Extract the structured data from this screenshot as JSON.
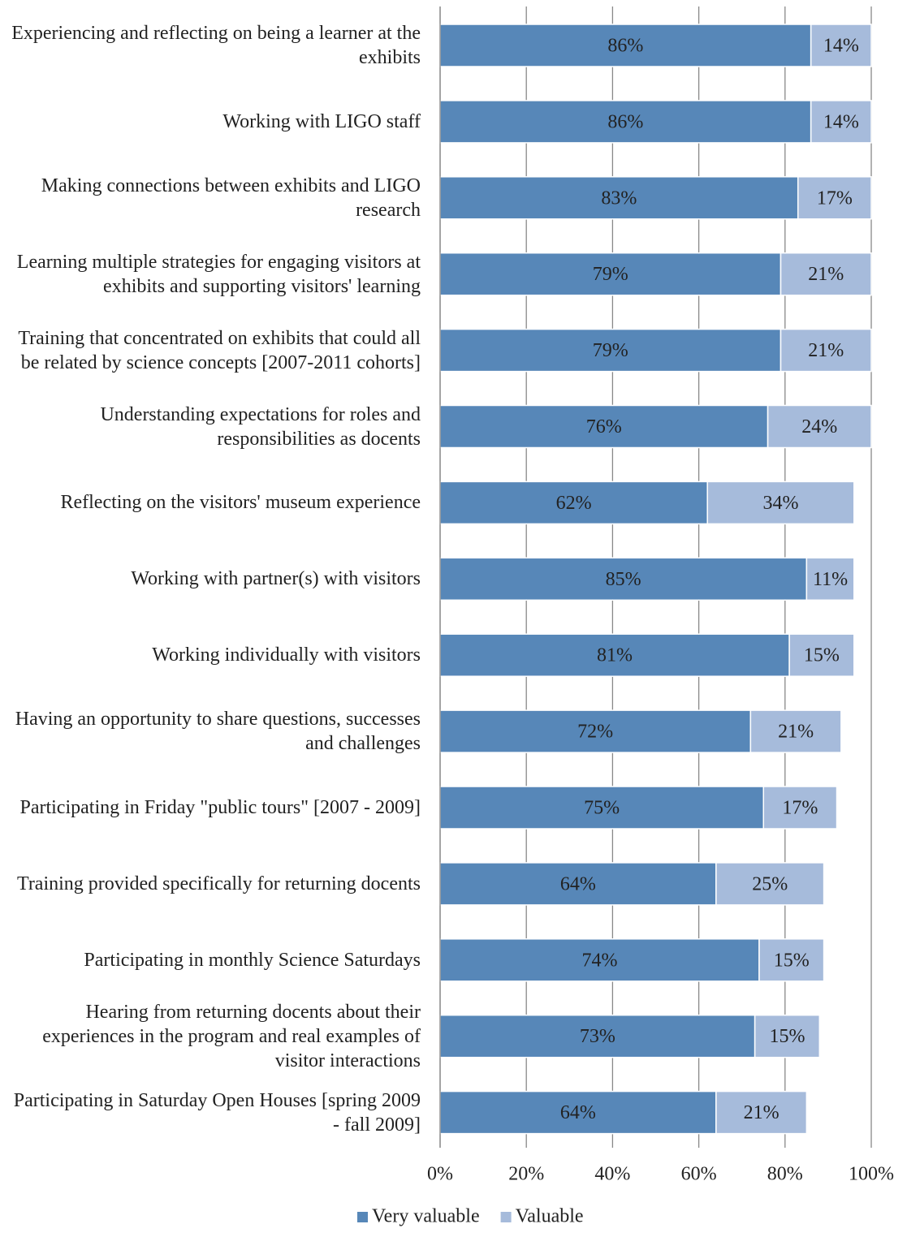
{
  "chart_data": {
    "type": "stacked_barh",
    "categories": [
      "Experiencing and reflecting on being a learner at the exhibits",
      "Working with LIGO staff",
      "Making connections between exhibits and LIGO research",
      "Learning multiple strategies for engaging visitors at exhibits and supporting visitors' learning",
      "Training that concentrated on exhibits that could all be related by science concepts [2007-2011 cohorts]",
      "Understanding expectations for roles and responsibilities as docents",
      "Reflecting on the visitors' museum experience",
      "Working with partner(s) with visitors",
      "Working individually with visitors",
      "Having an opportunity to share questions, successes and challenges",
      "Participating in Friday \"public tours\" [2007 - 2009]",
      "Training provided specifically for returning docents",
      "Participating in monthly Science Saturdays",
      "Hearing from returning docents about their experiences in the program and real examples of visitor interactions",
      "Participating in Saturday Open Houses [spring 2009 - fall 2009]"
    ],
    "series": [
      {
        "name": "Very valuable",
        "color": "#5787b8",
        "values": [
          86,
          86,
          83,
          79,
          79,
          76,
          62,
          85,
          81,
          72,
          75,
          64,
          74,
          73,
          64
        ],
        "value_labels": [
          "86%",
          "86%",
          "83%",
          "79%",
          "79%",
          "76%",
          "62%",
          "85%",
          "81%",
          "72%",
          "75%",
          "64%",
          "74%",
          "73%",
          "64%"
        ]
      },
      {
        "name": "Valuable",
        "color": "#a6bbdb",
        "values": [
          14,
          14,
          17,
          21,
          21,
          24,
          34,
          11,
          15,
          21,
          17,
          25,
          15,
          15,
          21
        ],
        "value_labels": [
          "14%",
          "14%",
          "17%",
          "21%",
          "21%",
          "24%",
          "34%",
          "11%",
          "15%",
          "21%",
          "17%",
          "25%",
          "15%",
          "15%",
          "21%"
        ]
      }
    ],
    "xlim": [
      0,
      100
    ],
    "xticks": [
      {
        "value": 0,
        "label": "0%"
      },
      {
        "value": 20,
        "label": "20%"
      },
      {
        "value": 40,
        "label": "40%"
      },
      {
        "value": 60,
        "label": "60%"
      },
      {
        "value": 80,
        "label": "80%"
      },
      {
        "value": 100,
        "label": "100%"
      }
    ],
    "grid": true,
    "legend": "bottom"
  }
}
